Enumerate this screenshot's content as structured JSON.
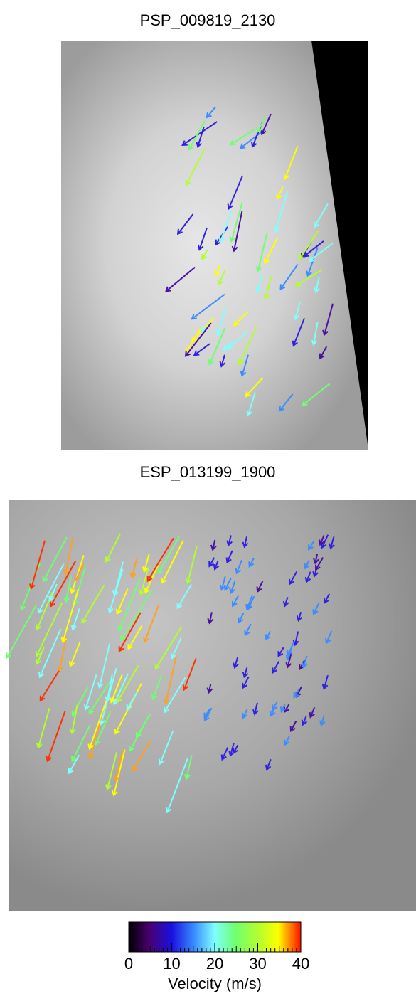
{
  "panels": [
    {
      "title": "PSP_009819_2130"
    },
    {
      "title": "ESP_013199_1900"
    }
  ],
  "colorbar": {
    "label": "Velocity (m/s)",
    "lim": [
      0,
      40
    ],
    "ticks": [
      0,
      10,
      20,
      30,
      40
    ]
  }
}
